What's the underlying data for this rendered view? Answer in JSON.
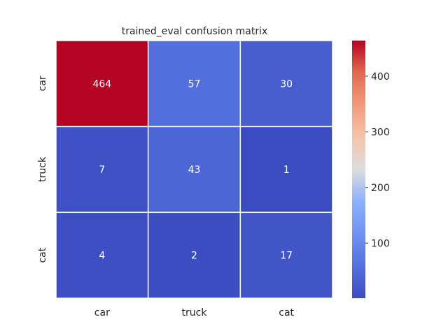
{
  "chart_data": {
    "type": "heatmap",
    "title": "trained_eval confusion matrix",
    "xlabel": "",
    "ylabel": "",
    "x_categories": [
      "car",
      "truck",
      "cat"
    ],
    "y_categories": [
      "car",
      "truck",
      "cat"
    ],
    "values": [
      [
        464,
        57,
        30
      ],
      [
        7,
        43,
        1
      ],
      [
        4,
        2,
        17
      ]
    ],
    "colormap": "coolwarm",
    "colorbar": {
      "min": 1,
      "max": 464,
      "ticks": [
        100,
        200,
        300,
        400
      ],
      "tick_labels": [
        "100",
        "200",
        "300",
        "400"
      ]
    },
    "annotation_colors": {
      "light": "#ffffff",
      "dark": "#262626"
    }
  }
}
